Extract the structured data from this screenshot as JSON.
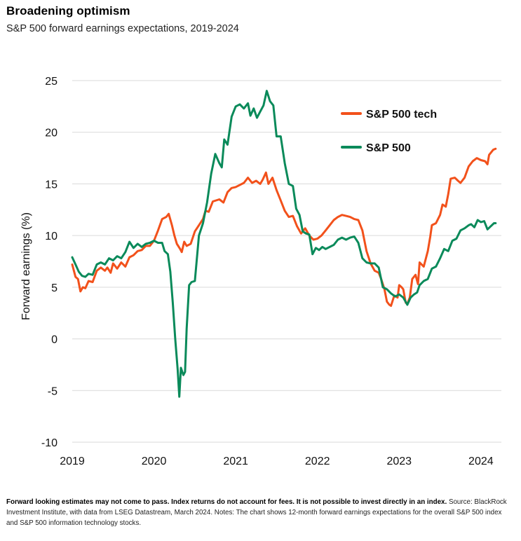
{
  "title": "Broadening optimism",
  "subtitle": "S&P 500 forward earnings expectations, 2019-2024",
  "footnote": {
    "bold": "Forward looking estimates may not come to pass. Index returns do not account for fees. It is not possible to invest directly in an index.",
    "normal": " Source: BlackRock Investment Institute, with data from LSEG Datastream, March 2024. Notes: The chart shows 12-month forward earnings expectations for the overall S&P 500 index and S&P 500 information technology stocks."
  },
  "colors": {
    "tech": "#f2511b",
    "sp500": "#0a8a5a",
    "grid": "#d9d9d9"
  },
  "chart_data": {
    "type": "line",
    "title": "",
    "xlabel": "",
    "ylabel": "Forward earnings (%)",
    "xlim": [
      2019.0,
      2024.25
    ],
    "ylim": [
      -10,
      25
    ],
    "yticks": [
      -10,
      -5,
      0,
      5,
      10,
      15,
      20,
      25
    ],
    "xticks": [
      2019,
      2020,
      2021,
      2022,
      2023,
      2024
    ],
    "xtick_labels": [
      "2019",
      "2020",
      "2021",
      "2022",
      "2023",
      "2024"
    ],
    "legend_position": "top-right",
    "grid": true,
    "series": [
      {
        "name": "S&P 500 tech",
        "color": "#f2511b",
        "points": [
          [
            2019.0,
            7.2
          ],
          [
            2019.04,
            6.0
          ],
          [
            2019.07,
            5.8
          ],
          [
            2019.1,
            4.6
          ],
          [
            2019.13,
            5.0
          ],
          [
            2019.16,
            4.9
          ],
          [
            2019.2,
            5.6
          ],
          [
            2019.25,
            5.5
          ],
          [
            2019.3,
            6.6
          ],
          [
            2019.35,
            6.9
          ],
          [
            2019.4,
            6.6
          ],
          [
            2019.43,
            6.9
          ],
          [
            2019.47,
            6.4
          ],
          [
            2019.5,
            7.3
          ],
          [
            2019.55,
            6.8
          ],
          [
            2019.6,
            7.4
          ],
          [
            2019.65,
            7.0
          ],
          [
            2019.7,
            7.9
          ],
          [
            2019.75,
            8.1
          ],
          [
            2019.8,
            8.5
          ],
          [
            2019.85,
            8.6
          ],
          [
            2019.9,
            9.0
          ],
          [
            2019.95,
            9.0
          ],
          [
            2020.0,
            9.5
          ],
          [
            2020.05,
            10.5
          ],
          [
            2020.1,
            11.6
          ],
          [
            2020.15,
            11.8
          ],
          [
            2020.18,
            12.1
          ],
          [
            2020.22,
            11.0
          ],
          [
            2020.25,
            10.0
          ],
          [
            2020.28,
            9.2
          ],
          [
            2020.32,
            8.7
          ],
          [
            2020.34,
            8.4
          ],
          [
            2020.37,
            9.4
          ],
          [
            2020.4,
            9.0
          ],
          [
            2020.45,
            9.2
          ],
          [
            2020.5,
            10.4
          ],
          [
            2020.55,
            11.0
          ],
          [
            2020.6,
            11.6
          ],
          [
            2020.63,
            12.4
          ],
          [
            2020.67,
            12.3
          ],
          [
            2020.72,
            13.3
          ],
          [
            2020.8,
            13.5
          ],
          [
            2020.85,
            13.2
          ],
          [
            2020.9,
            14.2
          ],
          [
            2020.95,
            14.6
          ],
          [
            2021.0,
            14.7
          ],
          [
            2021.05,
            14.9
          ],
          [
            2021.1,
            15.1
          ],
          [
            2021.15,
            15.6
          ],
          [
            2021.2,
            15.1
          ],
          [
            2021.25,
            15.3
          ],
          [
            2021.3,
            15.0
          ],
          [
            2021.33,
            15.4
          ],
          [
            2021.37,
            16.1
          ],
          [
            2021.4,
            15.0
          ],
          [
            2021.45,
            15.6
          ],
          [
            2021.5,
            14.4
          ],
          [
            2021.55,
            13.4
          ],
          [
            2021.6,
            12.4
          ],
          [
            2021.65,
            11.8
          ],
          [
            2021.7,
            11.9
          ],
          [
            2021.75,
            10.9
          ],
          [
            2021.8,
            10.2
          ],
          [
            2021.85,
            10.7
          ],
          [
            2021.9,
            10.0
          ],
          [
            2021.95,
            9.6
          ],
          [
            2022.0,
            9.7
          ],
          [
            2022.05,
            10.0
          ],
          [
            2022.1,
            10.5
          ],
          [
            2022.15,
            11.0
          ],
          [
            2022.2,
            11.5
          ],
          [
            2022.25,
            11.8
          ],
          [
            2022.3,
            12.0
          ],
          [
            2022.35,
            11.9
          ],
          [
            2022.4,
            11.8
          ],
          [
            2022.45,
            11.6
          ],
          [
            2022.5,
            11.5
          ],
          [
            2022.55,
            10.5
          ],
          [
            2022.6,
            8.5
          ],
          [
            2022.65,
            7.3
          ],
          [
            2022.7,
            6.6
          ],
          [
            2022.75,
            6.4
          ],
          [
            2022.78,
            5.8
          ],
          [
            2022.82,
            4.8
          ],
          [
            2022.85,
            3.6
          ],
          [
            2022.88,
            3.3
          ],
          [
            2022.9,
            3.2
          ],
          [
            2022.94,
            4.2
          ],
          [
            2022.98,
            4.0
          ],
          [
            2023.0,
            5.2
          ],
          [
            2023.03,
            5.0
          ],
          [
            2023.05,
            4.8
          ],
          [
            2023.08,
            3.5
          ],
          [
            2023.1,
            3.4
          ],
          [
            2023.13,
            4.0
          ],
          [
            2023.16,
            5.8
          ],
          [
            2023.2,
            6.2
          ],
          [
            2023.23,
            5.3
          ],
          [
            2023.25,
            7.4
          ],
          [
            2023.3,
            7.0
          ],
          [
            2023.35,
            8.5
          ],
          [
            2023.38,
            9.9
          ],
          [
            2023.4,
            11.0
          ],
          [
            2023.45,
            11.2
          ],
          [
            2023.5,
            12.0
          ],
          [
            2023.53,
            13.0
          ],
          [
            2023.57,
            12.8
          ],
          [
            2023.6,
            14.0
          ],
          [
            2023.63,
            15.5
          ],
          [
            2023.68,
            15.6
          ],
          [
            2023.72,
            15.3
          ],
          [
            2023.75,
            15.1
          ],
          [
            2023.8,
            15.6
          ],
          [
            2023.85,
            16.7
          ],
          [
            2023.9,
            17.2
          ],
          [
            2023.95,
            17.5
          ],
          [
            2024.0,
            17.3
          ],
          [
            2024.05,
            17.2
          ],
          [
            2024.08,
            16.9
          ],
          [
            2024.1,
            17.8
          ],
          [
            2024.15,
            18.3
          ],
          [
            2024.18,
            18.4
          ]
        ]
      },
      {
        "name": "S&P 500",
        "color": "#0a8a5a",
        "points": [
          [
            2019.0,
            7.9
          ],
          [
            2019.04,
            7.2
          ],
          [
            2019.08,
            6.5
          ],
          [
            2019.12,
            6.1
          ],
          [
            2019.16,
            6.0
          ],
          [
            2019.2,
            6.3
          ],
          [
            2019.25,
            6.2
          ],
          [
            2019.3,
            7.2
          ],
          [
            2019.35,
            7.4
          ],
          [
            2019.4,
            7.2
          ],
          [
            2019.45,
            7.8
          ],
          [
            2019.5,
            7.6
          ],
          [
            2019.55,
            8.0
          ],
          [
            2019.6,
            7.8
          ],
          [
            2019.65,
            8.4
          ],
          [
            2019.7,
            9.4
          ],
          [
            2019.75,
            8.8
          ],
          [
            2019.8,
            9.2
          ],
          [
            2019.85,
            8.9
          ],
          [
            2019.9,
            9.2
          ],
          [
            2019.95,
            9.3
          ],
          [
            2020.0,
            9.5
          ],
          [
            2020.05,
            9.3
          ],
          [
            2020.1,
            9.3
          ],
          [
            2020.13,
            8.5
          ],
          [
            2020.17,
            8.2
          ],
          [
            2020.2,
            6.5
          ],
          [
            2020.23,
            3.5
          ],
          [
            2020.26,
            0.0
          ],
          [
            2020.29,
            -3.0
          ],
          [
            2020.31,
            -5.6
          ],
          [
            2020.33,
            -2.8
          ],
          [
            2020.36,
            -3.5
          ],
          [
            2020.38,
            -3.2
          ],
          [
            2020.4,
            1.0
          ],
          [
            2020.43,
            5.2
          ],
          [
            2020.46,
            5.5
          ],
          [
            2020.5,
            5.6
          ],
          [
            2020.55,
            10.0
          ],
          [
            2020.6,
            11.2
          ],
          [
            2020.65,
            13.2
          ],
          [
            2020.7,
            16.0
          ],
          [
            2020.75,
            17.9
          ],
          [
            2020.8,
            17.0
          ],
          [
            2020.83,
            16.6
          ],
          [
            2020.86,
            19.3
          ],
          [
            2020.9,
            18.8
          ],
          [
            2020.95,
            21.5
          ],
          [
            2021.0,
            22.5
          ],
          [
            2021.05,
            22.7
          ],
          [
            2021.1,
            22.3
          ],
          [
            2021.15,
            22.8
          ],
          [
            2021.18,
            21.6
          ],
          [
            2021.22,
            22.3
          ],
          [
            2021.26,
            21.4
          ],
          [
            2021.3,
            22.0
          ],
          [
            2021.34,
            22.6
          ],
          [
            2021.38,
            24.0
          ],
          [
            2021.42,
            23.0
          ],
          [
            2021.46,
            22.6
          ],
          [
            2021.5,
            19.6
          ],
          [
            2021.55,
            19.6
          ],
          [
            2021.6,
            17.0
          ],
          [
            2021.65,
            15.0
          ],
          [
            2021.7,
            14.8
          ],
          [
            2021.74,
            12.6
          ],
          [
            2021.78,
            12.0
          ],
          [
            2021.82,
            10.4
          ],
          [
            2021.86,
            10.2
          ],
          [
            2021.9,
            10.1
          ],
          [
            2021.94,
            8.2
          ],
          [
            2021.98,
            8.8
          ],
          [
            2022.02,
            8.6
          ],
          [
            2022.06,
            8.9
          ],
          [
            2022.1,
            8.7
          ],
          [
            2022.15,
            8.9
          ],
          [
            2022.2,
            9.1
          ],
          [
            2022.25,
            9.6
          ],
          [
            2022.3,
            9.8
          ],
          [
            2022.35,
            9.6
          ],
          [
            2022.4,
            9.8
          ],
          [
            2022.45,
            9.9
          ],
          [
            2022.5,
            9.3
          ],
          [
            2022.55,
            7.8
          ],
          [
            2022.6,
            7.4
          ],
          [
            2022.65,
            7.3
          ],
          [
            2022.7,
            7.3
          ],
          [
            2022.75,
            6.9
          ],
          [
            2022.8,
            5.0
          ],
          [
            2022.85,
            4.8
          ],
          [
            2022.9,
            4.4
          ],
          [
            2022.95,
            4.1
          ],
          [
            2023.0,
            4.3
          ],
          [
            2023.05,
            4.0
          ],
          [
            2023.1,
            3.3
          ],
          [
            2023.14,
            4.0
          ],
          [
            2023.18,
            4.3
          ],
          [
            2023.22,
            4.5
          ],
          [
            2023.25,
            5.2
          ],
          [
            2023.3,
            5.6
          ],
          [
            2023.35,
            5.8
          ],
          [
            2023.4,
            6.8
          ],
          [
            2023.45,
            7.0
          ],
          [
            2023.5,
            7.8
          ],
          [
            2023.55,
            8.7
          ],
          [
            2023.6,
            8.5
          ],
          [
            2023.65,
            9.5
          ],
          [
            2023.7,
            9.7
          ],
          [
            2023.75,
            10.5
          ],
          [
            2023.8,
            10.7
          ],
          [
            2023.85,
            11.0
          ],
          [
            2023.88,
            11.1
          ],
          [
            2023.92,
            10.8
          ],
          [
            2023.96,
            11.5
          ],
          [
            2024.0,
            11.3
          ],
          [
            2024.04,
            11.4
          ],
          [
            2024.08,
            10.6
          ],
          [
            2024.12,
            10.9
          ],
          [
            2024.16,
            11.2
          ],
          [
            2024.18,
            11.2
          ]
        ]
      }
    ]
  }
}
